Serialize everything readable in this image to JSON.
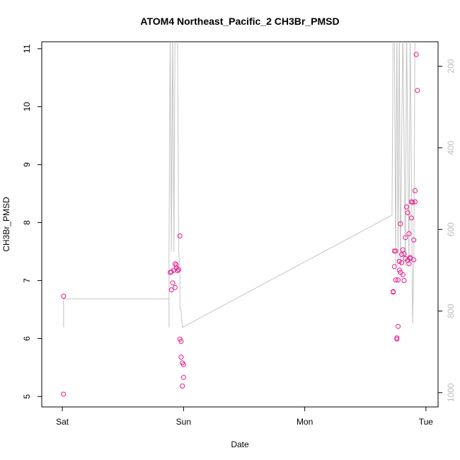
{
  "chart_data": {
    "type": "scatter",
    "title": "ATOM4 Northeast_Pacific_2 CH3Br_PMSD",
    "xlabel": "Date",
    "ylabel": "CH3Br_PMSD",
    "x_ticks": [
      {
        "label": "Sat",
        "day": 0
      },
      {
        "label": "Sun",
        "day": 1
      },
      {
        "label": "Mon",
        "day": 2
      },
      {
        "label": "Tue",
        "day": 3
      }
    ],
    "xlim": [
      -0.17,
      3.1
    ],
    "ylim": [
      4.82,
      11.12
    ],
    "y_ticks": [
      5,
      6,
      7,
      8,
      9,
      10,
      11
    ],
    "y2_ticks": [
      200,
      400,
      600,
      800,
      1000
    ],
    "y2lim": [
      1035,
      140
    ],
    "grid": false,
    "colors": {
      "points": "#e8178a",
      "depth": "#c4c4c4",
      "right_axis_labels": "#bdbdbd"
    },
    "points": [
      {
        "x": 0.01,
        "y": 6.73
      },
      {
        "x": 0.01,
        "y": 5.04
      },
      {
        "x": 0.89,
        "y": 7.14
      },
      {
        "x": 0.9,
        "y": 7.15
      },
      {
        "x": 0.9,
        "y": 6.84
      },
      {
        "x": 0.91,
        "y": 6.96
      },
      {
        "x": 0.92,
        "y": 7.18
      },
      {
        "x": 0.93,
        "y": 6.88
      },
      {
        "x": 0.93,
        "y": 7.29
      },
      {
        "x": 0.94,
        "y": 7.27
      },
      {
        "x": 0.94,
        "y": 7.22
      },
      {
        "x": 0.95,
        "y": 7.17
      },
      {
        "x": 0.96,
        "y": 7.19
      },
      {
        "x": 0.97,
        "y": 7.77
      },
      {
        "x": 0.97,
        "y": 5.99
      },
      {
        "x": 0.98,
        "y": 5.95
      },
      {
        "x": 0.98,
        "y": 5.68
      },
      {
        "x": 0.99,
        "y": 5.58
      },
      {
        "x": 0.99,
        "y": 5.18
      },
      {
        "x": 1.0,
        "y": 5.55
      },
      {
        "x": 1.0,
        "y": 5.33
      },
      {
        "x": 2.73,
        "y": 6.81
      },
      {
        "x": 2.73,
        "y": 6.8
      },
      {
        "x": 2.74,
        "y": 7.51
      },
      {
        "x": 2.74,
        "y": 7.24
      },
      {
        "x": 2.75,
        "y": 7.51
      },
      {
        "x": 2.75,
        "y": 7.01
      },
      {
        "x": 2.76,
        "y": 6.01
      },
      {
        "x": 2.76,
        "y": 5.99
      },
      {
        "x": 2.77,
        "y": 6.21
      },
      {
        "x": 2.77,
        "y": 7.01
      },
      {
        "x": 2.78,
        "y": 7.33
      },
      {
        "x": 2.78,
        "y": 7.18
      },
      {
        "x": 2.79,
        "y": 7.14
      },
      {
        "x": 2.79,
        "y": 7.98
      },
      {
        "x": 2.8,
        "y": 7.31
      },
      {
        "x": 2.8,
        "y": 7.45
      },
      {
        "x": 2.81,
        "y": 7.53
      },
      {
        "x": 2.81,
        "y": 7.1
      },
      {
        "x": 2.82,
        "y": 7.0
      },
      {
        "x": 2.82,
        "y": 7.46
      },
      {
        "x": 2.83,
        "y": 7.74
      },
      {
        "x": 2.83,
        "y": 7.38
      },
      {
        "x": 2.84,
        "y": 8.27
      },
      {
        "x": 2.85,
        "y": 8.17
      },
      {
        "x": 2.85,
        "y": 7.35
      },
      {
        "x": 2.86,
        "y": 7.81
      },
      {
        "x": 2.86,
        "y": 7.29
      },
      {
        "x": 2.87,
        "y": 7.4
      },
      {
        "x": 2.87,
        "y": 7.38
      },
      {
        "x": 2.88,
        "y": 8.08
      },
      {
        "x": 2.88,
        "y": 8.36
      },
      {
        "x": 2.89,
        "y": 8.35
      },
      {
        "x": 2.9,
        "y": 7.36
      },
      {
        "x": 2.9,
        "y": 7.7
      },
      {
        "x": 2.91,
        "y": 8.55
      },
      {
        "x": 2.91,
        "y": 8.36
      },
      {
        "x": 2.92,
        "y": 10.9
      },
      {
        "x": 2.93,
        "y": 10.28
      }
    ],
    "depth_series": {
      "name": "",
      "points": [
        {
          "x": 0.01,
          "y2": 840
        },
        {
          "x": 0.01,
          "y2": 840
        },
        {
          "x": 0.01,
          "y2": 770
        },
        {
          "x": 0.88,
          "y2": 770
        },
        {
          "x": 0.88,
          "y2": 840
        },
        {
          "x": 0.88,
          "y2": 655
        },
        {
          "x": 0.89,
          "y2": 100
        },
        {
          "x": 0.9,
          "y2": 655
        },
        {
          "x": 0.91,
          "y2": 100
        },
        {
          "x": 0.92,
          "y2": 655
        },
        {
          "x": 0.93,
          "y2": 100
        },
        {
          "x": 0.95,
          "y2": 100
        },
        {
          "x": 0.96,
          "y2": 655
        },
        {
          "x": 0.97,
          "y2": 690
        },
        {
          "x": 0.97,
          "y2": 790
        },
        {
          "x": 0.98,
          "y2": 800
        },
        {
          "x": 0.99,
          "y2": 840
        },
        {
          "x": 0.99,
          "y2": 840
        },
        {
          "x": 2.72,
          "y2": 565
        },
        {
          "x": 2.73,
          "y2": 100
        },
        {
          "x": 2.74,
          "y2": 100
        },
        {
          "x": 2.75,
          "y2": 690
        },
        {
          "x": 2.76,
          "y2": 100
        },
        {
          "x": 2.77,
          "y2": 690
        },
        {
          "x": 2.78,
          "y2": 100
        },
        {
          "x": 2.79,
          "y2": 690
        },
        {
          "x": 2.81,
          "y2": 100
        },
        {
          "x": 2.83,
          "y2": 690
        },
        {
          "x": 2.84,
          "y2": 100
        },
        {
          "x": 2.86,
          "y2": 690
        },
        {
          "x": 2.87,
          "y2": 100
        },
        {
          "x": 2.89,
          "y2": 830
        },
        {
          "x": 2.9,
          "y2": 690
        },
        {
          "x": 2.91,
          "y2": 100
        }
      ]
    }
  }
}
